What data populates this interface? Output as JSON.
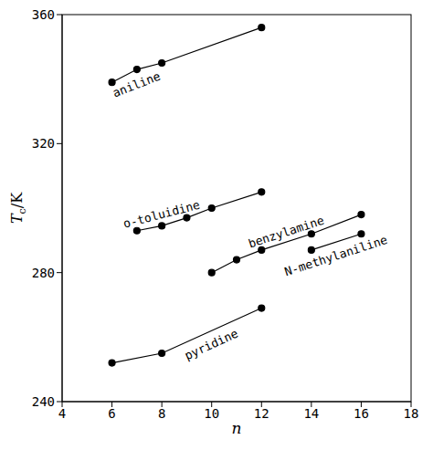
{
  "chart_data": {
    "type": "line",
    "x_label": "n",
    "y_label": "Tc/K",
    "xlim": [
      4,
      18
    ],
    "xticks": [
      4,
      6,
      8,
      10,
      12,
      14,
      16,
      18
    ],
    "ylim": [
      240,
      360
    ],
    "yticks": [
      240,
      280,
      320,
      360
    ],
    "grid": false,
    "series": [
      {
        "name": "aniline",
        "color": "#000000",
        "marker": "circle",
        "line_style": "solid",
        "x": [
          6,
          7,
          8,
          12
        ],
        "values": [
          339,
          343,
          345,
          356
        ]
      },
      {
        "name": "o-toluidine",
        "color": "#000000",
        "marker": "circle",
        "line_style": "solid",
        "x": [
          7,
          8,
          9,
          10,
          12
        ],
        "values": [
          293,
          294.5,
          297,
          300,
          305
        ]
      },
      {
        "name": "benzylamine",
        "color": "#000000",
        "marker": "circle",
        "line_style": "solid",
        "x": [
          10,
          11,
          12,
          14,
          16
        ],
        "values": [
          280,
          284,
          287,
          292,
          298
        ]
      },
      {
        "name": "N-methylaniline",
        "color": "#000000",
        "marker": "circle",
        "line_style": "solid",
        "x": [
          14,
          16
        ],
        "values": [
          287,
          292
        ]
      },
      {
        "name": "pyridine",
        "color": "#000000",
        "marker": "circle",
        "line_style": "solid",
        "x": [
          6,
          8,
          12
        ],
        "values": [
          252,
          255,
          269
        ]
      }
    ]
  }
}
